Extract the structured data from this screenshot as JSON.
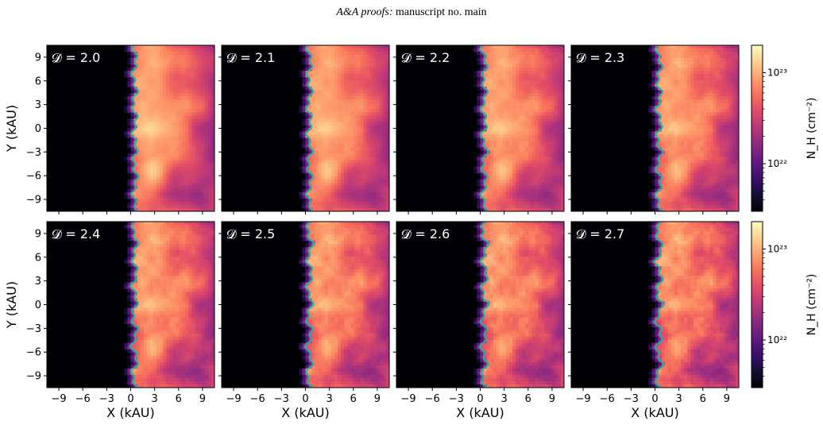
{
  "page_header": {
    "italic": "A&A proofs:",
    "rest": " manuscript no. main"
  },
  "chart_data": {
    "type": "heatmap",
    "panels": [
      {
        "label": "𝓓 = 2.0",
        "fractal_dimension": 2.0
      },
      {
        "label": "𝓓 = 2.1",
        "fractal_dimension": 2.1
      },
      {
        "label": "𝓓 = 2.2",
        "fractal_dimension": 2.2
      },
      {
        "label": "𝓓 = 2.3",
        "fractal_dimension": 2.3
      },
      {
        "label": "𝓓 = 2.4",
        "fractal_dimension": 2.4
      },
      {
        "label": "𝓓 = 2.5",
        "fractal_dimension": 2.5
      },
      {
        "label": "𝓓 = 2.6",
        "fractal_dimension": 2.6
      },
      {
        "label": "𝓓 = 2.7",
        "fractal_dimension": 2.7
      }
    ],
    "xlabel": "X (kAU)",
    "ylabel": "Y (kAU)",
    "xlim": [
      -10.5,
      10.5
    ],
    "ylim": [
      -10.5,
      10.5
    ],
    "xticks": [
      -9,
      -6,
      -3,
      0,
      3,
      6,
      9
    ],
    "yticks": [
      -9,
      -6,
      -3,
      0,
      3,
      6,
      9
    ],
    "xtick_labels": [
      "−9",
      "−6",
      "−3",
      "0",
      "3",
      "6",
      "9"
    ],
    "ytick_labels": [
      "−9",
      "−6",
      "−3",
      "0",
      "3",
      "6",
      "9"
    ],
    "colorbar": {
      "label": "N_H (cm⁻²)",
      "scale": "log",
      "range": [
        3e+21,
        2e+23
      ],
      "ticks": [
        1e+22,
        1e+23
      ],
      "tick_labels": [
        "10²²",
        "10²³"
      ],
      "colormap": "magma"
    },
    "front_x_kau": 0.5,
    "front_color": "#1fb0a6"
  }
}
